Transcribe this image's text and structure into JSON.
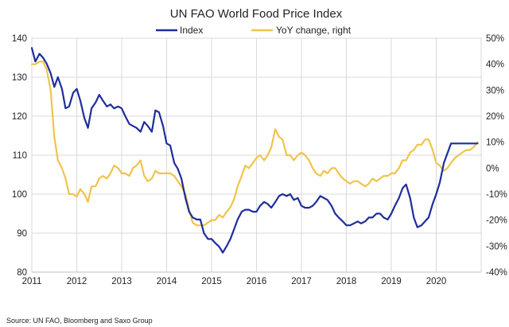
{
  "chart_data": {
    "type": "line",
    "title": "UN FAO World Food Price Index",
    "source": "Source:  UN FAO, Bloomberg  and Saxo Group",
    "xlabel": "",
    "ylabel": "",
    "x_ticks": [
      "2011",
      "2012",
      "2013",
      "2014",
      "2015",
      "2016",
      "2017",
      "2018",
      "2019",
      "2020"
    ],
    "ylim_left": [
      80,
      140
    ],
    "yticks_left": [
      80,
      90,
      100,
      110,
      120,
      130,
      140
    ],
    "ylim_right": [
      -40,
      50
    ],
    "yticks_right": [
      "-40%",
      "-30%",
      "-20%",
      "-10%",
      "0%",
      "10%",
      "20%",
      "30%",
      "40%",
      "50%"
    ],
    "grid": true,
    "legend_position": "top",
    "colors": {
      "index": "#1f2d9b",
      "yoy": "#f0c44a"
    },
    "series": [
      {
        "name": "Index",
        "axis": "left",
        "x": [
          2011.0,
          2011.08,
          2011.17,
          2011.25,
          2011.33,
          2011.42,
          2011.5,
          2011.58,
          2011.67,
          2011.75,
          2011.83,
          2011.92,
          2012.0,
          2012.08,
          2012.17,
          2012.25,
          2012.33,
          2012.42,
          2012.5,
          2012.58,
          2012.67,
          2012.75,
          2012.83,
          2012.92,
          2013.0,
          2013.08,
          2013.17,
          2013.25,
          2013.33,
          2013.42,
          2013.5,
          2013.58,
          2013.67,
          2013.75,
          2013.83,
          2013.92,
          2014.0,
          2014.08,
          2014.17,
          2014.25,
          2014.33,
          2014.42,
          2014.5,
          2014.58,
          2014.67,
          2014.75,
          2014.83,
          2014.92,
          2015.0,
          2015.08,
          2015.17,
          2015.25,
          2015.33,
          2015.42,
          2015.5,
          2015.58,
          2015.67,
          2015.75,
          2015.83,
          2015.92,
          2016.0,
          2016.08,
          2016.17,
          2016.25,
          2016.33,
          2016.42,
          2016.5,
          2016.58,
          2016.67,
          2016.75,
          2016.83,
          2016.92,
          2017.0,
          2017.08,
          2017.17,
          2017.25,
          2017.33,
          2017.42,
          2017.5,
          2017.58,
          2017.67,
          2017.75,
          2017.83,
          2017.92,
          2018.0,
          2018.08,
          2018.17,
          2018.25,
          2018.33,
          2018.42,
          2018.5,
          2018.58,
          2018.67,
          2018.75,
          2018.83,
          2018.92,
          2019.0,
          2019.08,
          2019.17,
          2019.25,
          2019.33,
          2019.42,
          2019.5,
          2019.58,
          2019.67,
          2019.75,
          2019.83,
          2019.92,
          2020.0,
          2020.08,
          2020.17,
          2020.25,
          2020.33,
          2020.42,
          2020.5,
          2020.58,
          2020.67,
          2020.75,
          2020.83,
          2020.92
        ],
        "values": [
          137.5,
          134.0,
          136.0,
          135.0,
          133.5,
          131.0,
          127.5,
          130.0,
          127.0,
          122.0,
          122.5,
          126.0,
          127.0,
          124.0,
          119.5,
          117.0,
          122.0,
          123.5,
          125.5,
          124.0,
          122.5,
          123.0,
          122.0,
          122.5,
          122.0,
          120.0,
          118.0,
          117.5,
          117.0,
          116.0,
          118.5,
          117.5,
          116.0,
          121.5,
          121.0,
          117.5,
          113.0,
          112.5,
          108.0,
          106.5,
          104.0,
          99.0,
          95.5,
          94.0,
          93.5,
          93.5,
          90.0,
          88.5,
          88.5,
          87.5,
          86.5,
          85.0,
          86.5,
          88.5,
          91.0,
          93.5,
          95.5,
          96.0,
          96.0,
          95.5,
          95.5,
          97.0,
          98.0,
          97.5,
          96.5,
          98.0,
          99.5,
          100.0,
          99.5,
          100.0,
          98.5,
          99.0,
          97.0,
          96.5,
          96.5,
          97.0,
          98.0,
          99.5,
          99.0,
          98.5,
          97.0,
          95.0,
          94.0,
          93.0,
          92.0,
          92.0,
          92.5,
          93.0,
          92.5,
          93.0,
          94.0,
          94.0,
          95.0,
          95.0,
          94.0,
          93.5,
          95.0,
          97.0,
          99.0,
          101.5,
          102.5,
          99.0,
          94.0,
          91.5,
          92.0,
          93.0,
          94.0,
          97.5,
          100.0,
          103.0,
          108.0,
          110.5,
          113.0,
          113.0,
          113.0,
          113.0,
          113.0,
          113.0,
          113.0,
          113.0
        ]
      },
      {
        "name": "YoY change, right",
        "axis": "right",
        "x": [
          2011.0,
          2011.08,
          2011.17,
          2011.25,
          2011.33,
          2011.42,
          2011.5,
          2011.58,
          2011.67,
          2011.75,
          2011.83,
          2011.92,
          2012.0,
          2012.08,
          2012.17,
          2012.25,
          2012.33,
          2012.42,
          2012.5,
          2012.58,
          2012.67,
          2012.75,
          2012.83,
          2012.92,
          2013.0,
          2013.08,
          2013.17,
          2013.25,
          2013.33,
          2013.42,
          2013.5,
          2013.58,
          2013.67,
          2013.75,
          2013.83,
          2013.92,
          2014.0,
          2014.08,
          2014.17,
          2014.25,
          2014.33,
          2014.42,
          2014.5,
          2014.58,
          2014.67,
          2014.75,
          2014.83,
          2014.92,
          2015.0,
          2015.08,
          2015.17,
          2015.25,
          2015.33,
          2015.42,
          2015.5,
          2015.58,
          2015.67,
          2015.75,
          2015.83,
          2015.92,
          2016.0,
          2016.08,
          2016.17,
          2016.25,
          2016.33,
          2016.42,
          2016.5,
          2016.58,
          2016.67,
          2016.75,
          2016.83,
          2016.92,
          2017.0,
          2017.08,
          2017.17,
          2017.25,
          2017.33,
          2017.42,
          2017.5,
          2017.58,
          2017.67,
          2017.75,
          2017.83,
          2017.92,
          2018.0,
          2018.08,
          2018.17,
          2018.25,
          2018.33,
          2018.42,
          2018.5,
          2018.58,
          2018.67,
          2018.75,
          2018.83,
          2018.92,
          2019.0,
          2019.08,
          2019.17,
          2019.25,
          2019.33,
          2019.42,
          2019.5,
          2019.58,
          2019.67,
          2019.75,
          2019.83,
          2019.92,
          2020.0,
          2020.08,
          2020.17,
          2020.25,
          2020.33,
          2020.42,
          2020.5,
          2020.58,
          2020.67,
          2020.75,
          2020.83,
          2020.92
        ],
        "values": [
          40,
          40,
          41,
          41,
          38,
          30,
          12,
          3,
          0,
          -4,
          -10,
          -10,
          -11,
          -8,
          -10,
          -13,
          -7,
          -7,
          -4,
          -3,
          -4,
          -2,
          1,
          0,
          -2,
          -2,
          -3,
          0,
          1,
          3,
          -3,
          -5,
          -4,
          -1,
          -2,
          -2,
          -2,
          -2,
          -3,
          -5,
          -7,
          -10,
          -16,
          -21,
          -22,
          -22,
          -22,
          -21,
          -20,
          -20,
          -18,
          -19,
          -17,
          -15,
          -12,
          -7,
          -3,
          1,
          0,
          2,
          4,
          5,
          3,
          5,
          8,
          15,
          12,
          11,
          5,
          5,
          3,
          5,
          6,
          5,
          3,
          0,
          -2,
          -3,
          -1,
          -2,
          0,
          0,
          -2,
          -4,
          -5,
          -6,
          -5,
          -5,
          -6,
          -7,
          -6,
          -4,
          -5,
          -4,
          -3,
          -3,
          -2,
          -2,
          0,
          3,
          3,
          6,
          7,
          9,
          9,
          11,
          11,
          7,
          2,
          1,
          -1,
          0,
          2,
          4,
          5,
          6,
          7,
          7,
          8,
          10
        ]
      }
    ]
  }
}
